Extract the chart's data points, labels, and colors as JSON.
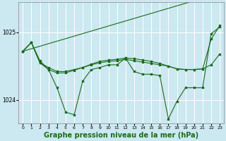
{
  "background_color": "#cce8f0",
  "plot_bg_color": "#cce8f0",
  "grid_color": "#ffffff",
  "line_color": "#1a6b1a",
  "xlabel": "Graphe pression niveau de la mer (hPa)",
  "xlabel_fontsize": 7,
  "xlim": [
    -0.5,
    23.5
  ],
  "ylim": [
    1023.65,
    1025.45
  ],
  "yticks": [
    1024,
    1025
  ],
  "xticks": [
    0,
    1,
    2,
    3,
    4,
    5,
    6,
    7,
    8,
    9,
    10,
    11,
    12,
    13,
    14,
    15,
    16,
    17,
    18,
    19,
    20,
    21,
    22,
    23
  ],
  "wiggly_line": {
    "x": [
      0,
      1,
      2,
      3,
      4,
      5,
      6,
      7,
      8,
      9,
      10,
      11,
      12,
      13,
      14,
      15,
      16,
      17,
      18,
      19,
      20,
      21,
      22,
      23
    ],
    "y": [
      1024.72,
      1024.85,
      1024.58,
      1024.45,
      1024.18,
      1023.82,
      1023.78,
      1024.28,
      1024.45,
      1024.48,
      1024.52,
      1024.52,
      1024.62,
      1024.42,
      1024.38,
      1024.38,
      1024.36,
      1023.72,
      1023.98,
      1024.18,
      1024.18,
      1024.18,
      1024.98,
      1025.08
    ]
  },
  "flat_line": {
    "x": [
      0,
      1,
      2,
      3,
      4,
      5,
      6,
      7,
      8,
      9,
      10,
      11,
      12,
      13,
      14,
      15,
      16,
      17,
      18,
      19,
      20,
      21,
      22,
      23
    ],
    "y": [
      1024.72,
      1024.85,
      1024.55,
      1024.48,
      1024.42,
      1024.42,
      1024.45,
      1024.48,
      1024.52,
      1024.55,
      1024.57,
      1024.58,
      1024.6,
      1024.58,
      1024.56,
      1024.54,
      1024.52,
      1024.5,
      1024.46,
      1024.45,
      1024.45,
      1024.46,
      1024.52,
      1024.68
    ]
  },
  "trend_line": {
    "x": [
      0,
      23
    ],
    "y": [
      1024.72,
      1025.58
    ]
  },
  "wiggly2_line": {
    "x": [
      0,
      1,
      2,
      3,
      4,
      5,
      6,
      7,
      8,
      9,
      10,
      11,
      12,
      13,
      14,
      15,
      16,
      17,
      18,
      19,
      20,
      21,
      22,
      23
    ],
    "y": [
      1024.72,
      1024.85,
      1024.55,
      1024.45,
      1024.4,
      1024.4,
      1024.44,
      1024.48,
      1024.53,
      1024.57,
      1024.59,
      1024.6,
      1024.62,
      1024.61,
      1024.59,
      1024.57,
      1024.54,
      1024.5,
      1024.46,
      1024.45,
      1024.45,
      1024.46,
      1024.9,
      1025.1
    ]
  }
}
